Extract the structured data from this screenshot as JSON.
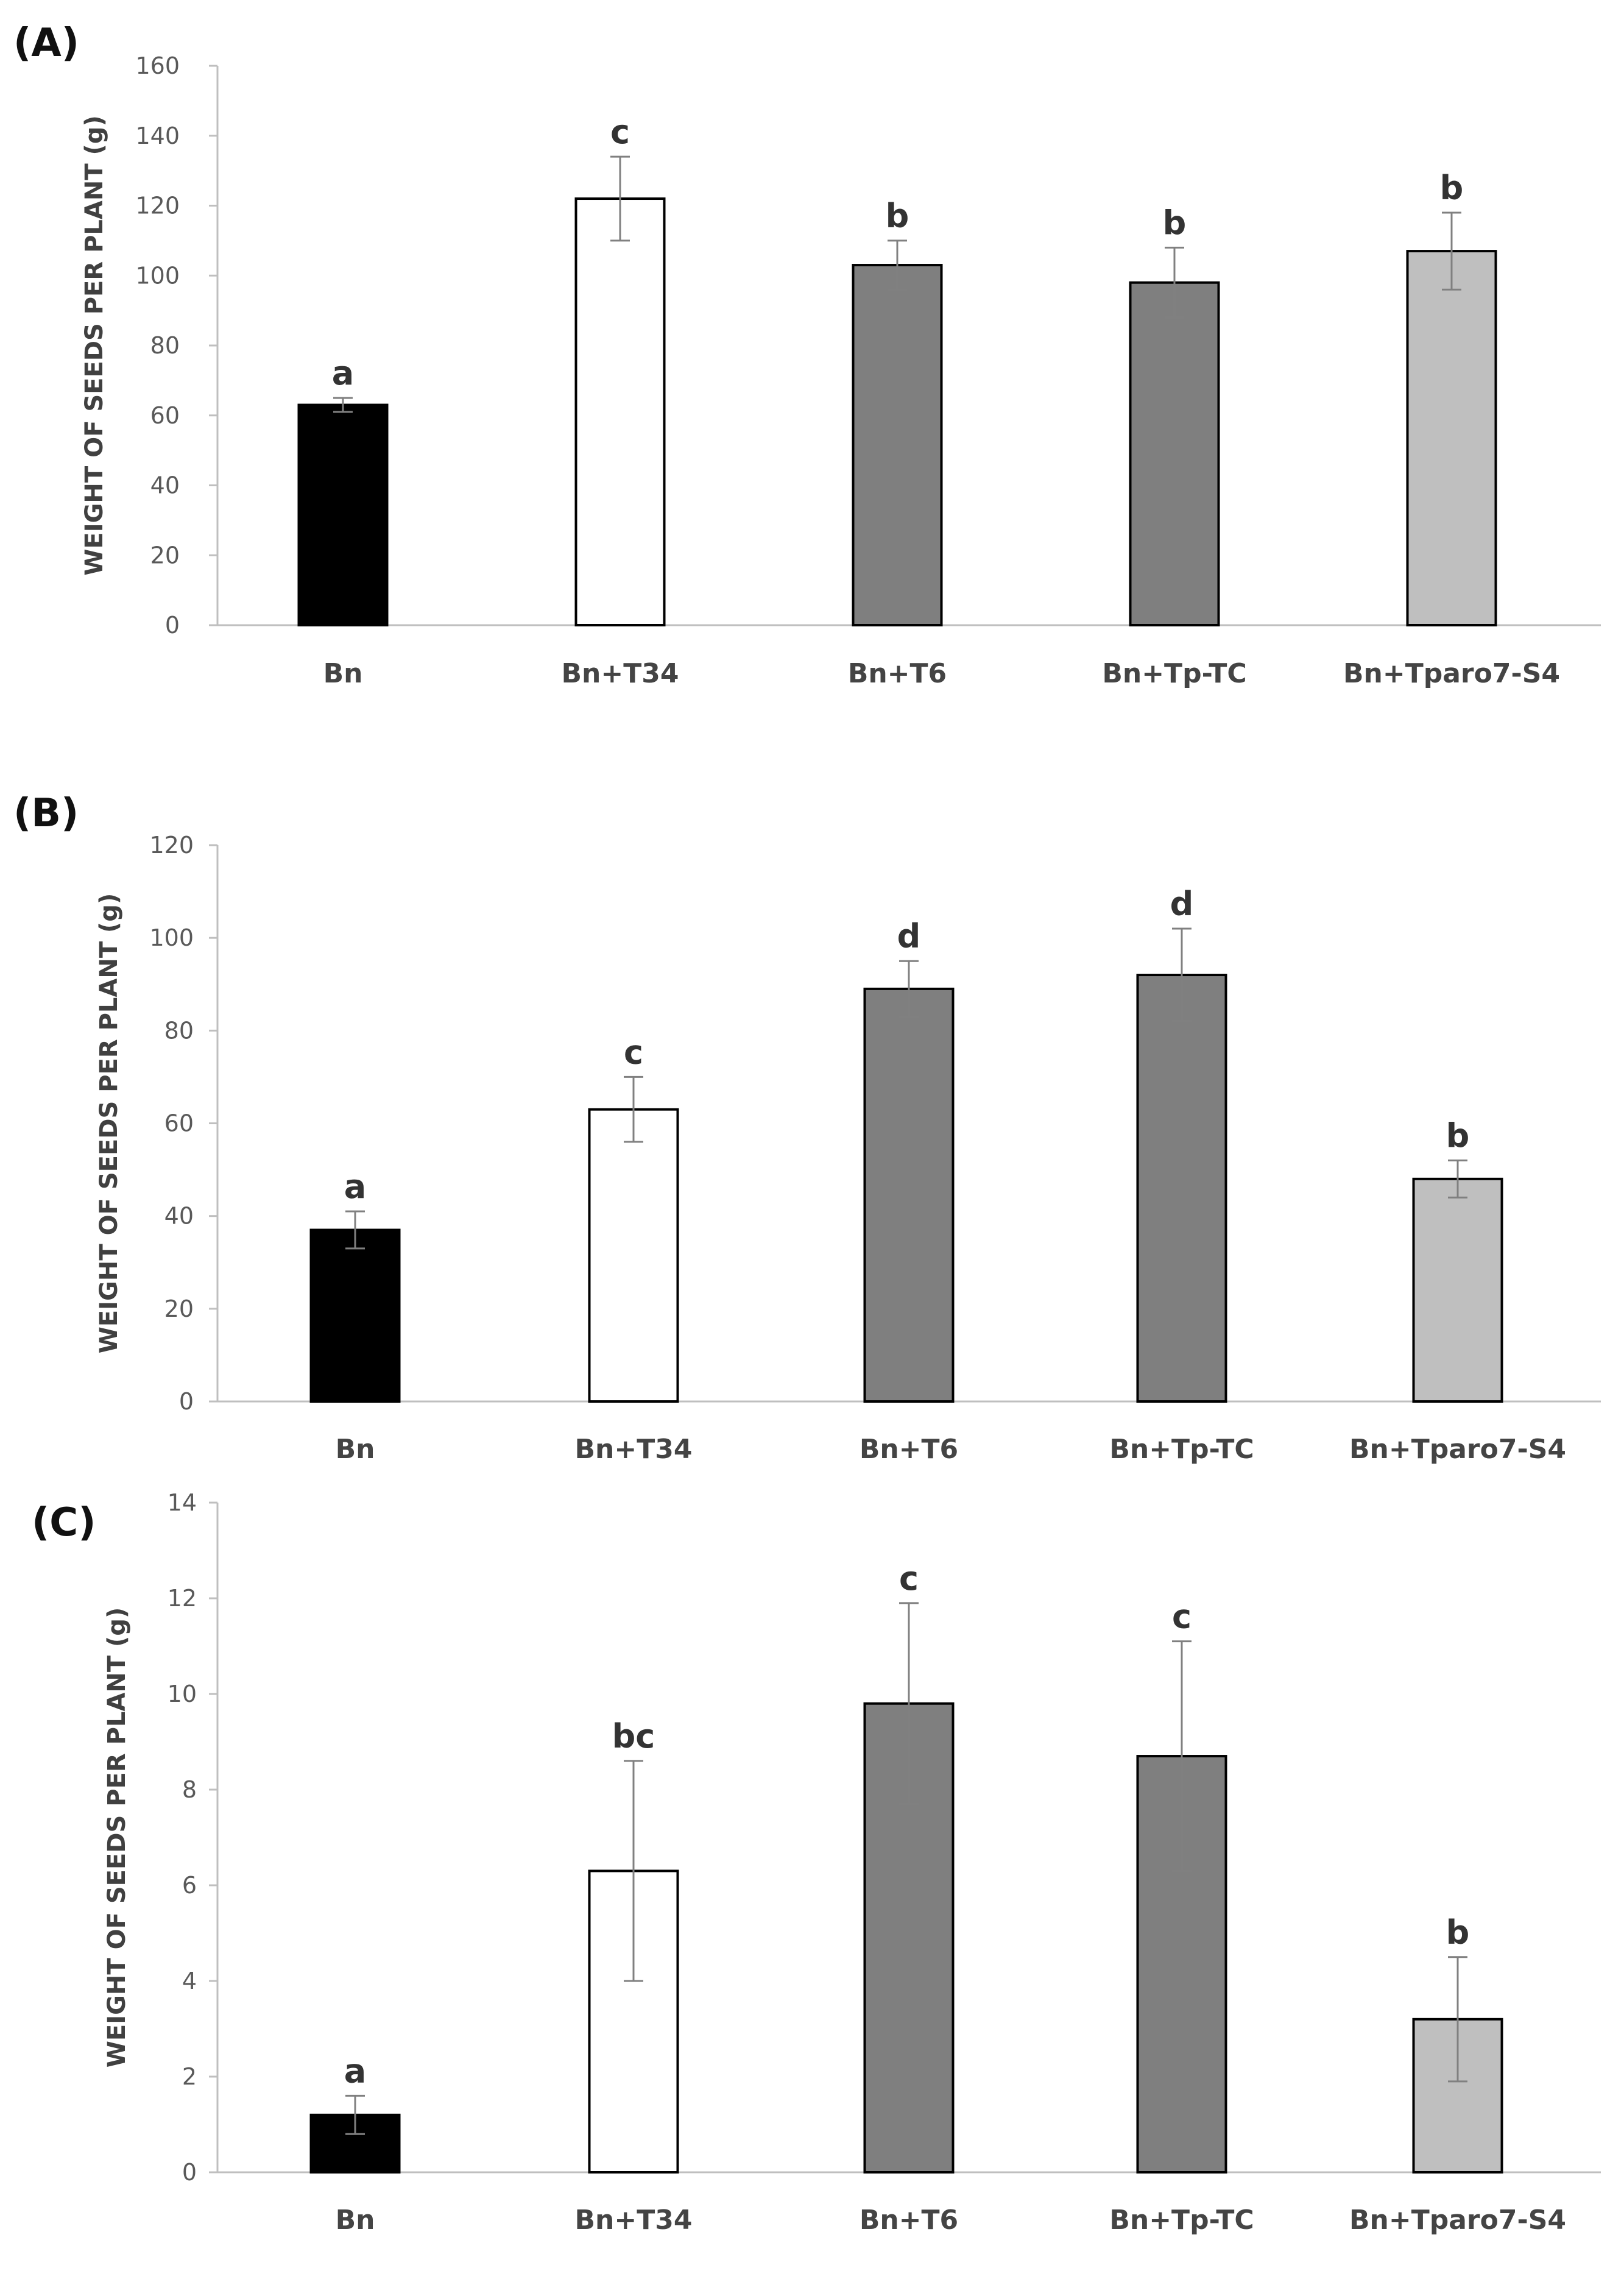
{
  "figure": {
    "bar_colors": [
      "#000000",
      "#ffffff",
      "#7f7f7f",
      "#7f7f7f",
      "#bfbfbf"
    ],
    "bar_stroke": "#000000",
    "axis_color": "#bfbfbf",
    "text_color": "#595959"
  },
  "chart_data": [
    {
      "panel": "(A)",
      "type": "bar",
      "categories": [
        "Bn",
        "Bn+T34",
        "Bn+T6",
        "Bn+Tp-TC",
        "Bn+Tparo7-S4"
      ],
      "values": [
        63,
        122,
        103,
        98,
        107
      ],
      "errors": [
        2,
        12,
        7,
        10,
        11
      ],
      "significance": [
        "a",
        "c",
        "b",
        "b",
        "b"
      ],
      "ylabel": "WEIGHT OF SEEDS PER PLANT (g)",
      "ylim": [
        0,
        160
      ],
      "yticks": [
        0,
        20,
        40,
        60,
        80,
        100,
        120,
        140,
        160
      ],
      "grid": false
    },
    {
      "panel": "(B)",
      "type": "bar",
      "categories": [
        "Bn",
        "Bn+T34",
        "Bn+T6",
        "Bn+Tp-TC",
        "Bn+Tparo7-S4"
      ],
      "values": [
        37,
        63,
        89,
        92,
        48
      ],
      "errors": [
        4,
        7,
        6,
        10,
        4
      ],
      "significance": [
        "a",
        "c",
        "d",
        "d",
        "b"
      ],
      "ylabel": "WEIGHT OF SEEDS PER PLANT (g)",
      "ylim": [
        0,
        120
      ],
      "yticks": [
        0,
        20,
        40,
        60,
        80,
        100,
        120
      ],
      "grid": false
    },
    {
      "panel": "(C)",
      "type": "bar",
      "categories": [
        "Bn",
        "Bn+T34",
        "Bn+T6",
        "Bn+Tp-TC",
        "Bn+Tparo7-S4"
      ],
      "values": [
        1.2,
        6.3,
        9.8,
        8.7,
        3.2
      ],
      "errors": [
        0.4,
        2.3,
        2.1,
        2.4,
        1.3
      ],
      "significance": [
        "a",
        "bc",
        "c",
        "c",
        "b"
      ],
      "ylabel": "WEIGHT OF SEEDS PER PLANT (g)",
      "ylim": [
        0,
        14
      ],
      "yticks": [
        0,
        2,
        4,
        6,
        8,
        10,
        12,
        14
      ],
      "grid": false
    }
  ]
}
